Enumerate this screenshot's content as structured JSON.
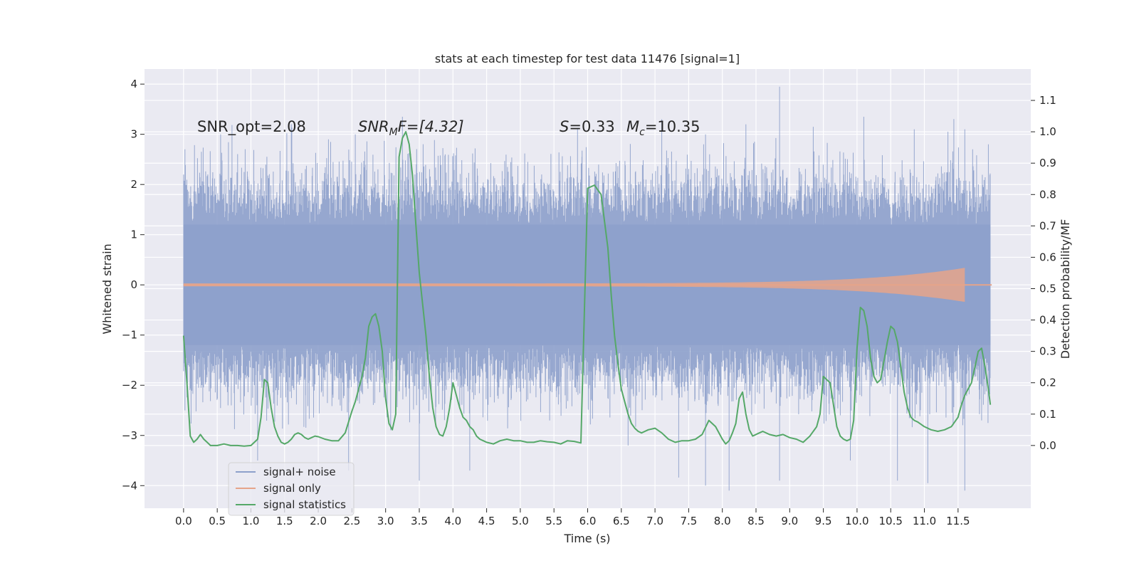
{
  "chart_data": {
    "type": "line",
    "title": "stats at each timestep for test data 11476 [signal=1]",
    "xlabel": "Time (s)",
    "ylabel_left": "Whitened strain",
    "ylabel_right": "Detection probability/MF",
    "xlim": [
      -0.58,
      12.58
    ],
    "ylim_left": [
      -4.45,
      4.3
    ],
    "ylim_right": [
      -0.2,
      1.2
    ],
    "xticks": [
      "0.0",
      "0.5",
      "1.0",
      "1.5",
      "2.0",
      "2.5",
      "3.0",
      "3.5",
      "4.0",
      "4.5",
      "5.0",
      "5.5",
      "6.0",
      "6.5",
      "7.0",
      "7.5",
      "8.0",
      "8.5",
      "9.0",
      "9.5",
      "10.0",
      "10.5",
      "11.0",
      "11.5"
    ],
    "yticks_left": [
      "4",
      "3",
      "2",
      "1",
      "0",
      "−1",
      "−2",
      "−3",
      "−4"
    ],
    "yticks_right": [
      "1.1",
      "1.0",
      "0.9",
      "0.8",
      "0.7",
      "0.6",
      "0.5",
      "0.4",
      "0.3",
      "0.2",
      "0.1",
      "0.0"
    ],
    "grid": true,
    "legend_position": "lower-left",
    "annotations": {
      "snr_opt": "SNR_opt=2.08",
      "snr_mf_main": "SNR",
      "snr_mf_sub": "M",
      "snr_mf_rest": "F=[4.32]",
      "s_main": "S",
      "s_rest": "=0.33",
      "mc_main": "M",
      "mc_sub": "c",
      "mc_rest": "=10.35"
    },
    "series": [
      {
        "name": "signal+ noise",
        "color": "#8da0cb",
        "description_values": "white noise, time 0.0-11.98 s, amplitude ~[-4.1, 3.95]",
        "t_range": [
          0.0,
          11.98
        ],
        "spike_times_high": [
          0.02,
          0.55,
          1.6,
          2.55,
          3.25,
          5.85,
          7.1,
          7.75,
          8.35,
          8.85,
          9.35,
          10.1,
          10.85,
          11.35,
          11.6,
          11.95
        ],
        "spike_values_high": [
          2.7,
          3.0,
          3.2,
          3.0,
          3.35,
          3.1,
          3.3,
          3.0,
          3.2,
          3.95,
          3.15,
          3.35,
          3.1,
          3.05,
          3.1,
          2.8
        ],
        "spike_times_low": [
          0.02,
          1.1,
          2.45,
          3.5,
          4.25,
          6.6,
          7.75,
          8.1,
          8.85,
          9.9,
          10.6,
          11.05,
          11.6,
          11.85
        ],
        "spike_values_low": [
          -2.5,
          -3.5,
          -3.7,
          -3.9,
          -3.7,
          -3.2,
          -4.0,
          -4.1,
          -3.9,
          -3.5,
          -3.9,
          -3.95,
          -4.1,
          -2.7
        ]
      },
      {
        "name": "signal only",
        "color": "#e6a48a",
        "description_values": "chirp growing toward 11.65 s peak amplitude ~0.35",
        "t_range": [
          0.0,
          11.65
        ],
        "peak_amplitude": 0.35
      },
      {
        "name": "signal statistics",
        "color": "#55a868",
        "axis": "right",
        "x": [
          0.0,
          0.05,
          0.1,
          0.15,
          0.2,
          0.25,
          0.3,
          0.35,
          0.4,
          0.5,
          0.6,
          0.7,
          0.8,
          0.9,
          1.0,
          1.1,
          1.15,
          1.2,
          1.25,
          1.3,
          1.35,
          1.4,
          1.45,
          1.5,
          1.55,
          1.6,
          1.65,
          1.7,
          1.75,
          1.8,
          1.85,
          1.9,
          1.95,
          2.0,
          2.1,
          2.2,
          2.3,
          2.4,
          2.5,
          2.55,
          2.6,
          2.65,
          2.7,
          2.75,
          2.8,
          2.85,
          2.9,
          2.95,
          3.0,
          3.05,
          3.1,
          3.15,
          3.2,
          3.25,
          3.3,
          3.35,
          3.4,
          3.45,
          3.5,
          3.55,
          3.6,
          3.65,
          3.7,
          3.75,
          3.8,
          3.85,
          3.9,
          3.95,
          4.0,
          4.05,
          4.1,
          4.15,
          4.2,
          4.25,
          4.3,
          4.35,
          4.4,
          4.45,
          4.5,
          4.6,
          4.7,
          4.8,
          4.9,
          5.0,
          5.1,
          5.2,
          5.3,
          5.4,
          5.5,
          5.6,
          5.7,
          5.8,
          5.9,
          6.0,
          6.1,
          6.2,
          6.3,
          6.35,
          6.4,
          6.45,
          6.5,
          6.55,
          6.6,
          6.65,
          6.7,
          6.75,
          6.8,
          6.85,
          6.9,
          7.0,
          7.1,
          7.2,
          7.3,
          7.4,
          7.5,
          7.6,
          7.7,
          7.8,
          7.9,
          8.0,
          8.05,
          8.1,
          8.15,
          8.2,
          8.25,
          8.3,
          8.35,
          8.4,
          8.45,
          8.5,
          8.55,
          8.6,
          8.7,
          8.8,
          8.9,
          9.0,
          9.1,
          9.2,
          9.3,
          9.4,
          9.45,
          9.5,
          9.55,
          9.6,
          9.65,
          9.7,
          9.75,
          9.8,
          9.85,
          9.9,
          9.95,
          10.0,
          10.05,
          10.1,
          10.15,
          10.2,
          10.25,
          10.3,
          10.35,
          10.4,
          10.45,
          10.5,
          10.55,
          10.6,
          10.65,
          10.7,
          10.75,
          10.8,
          10.85,
          10.9,
          11.0,
          11.1,
          11.2,
          11.3,
          11.4,
          11.5,
          11.55,
          11.6,
          11.65,
          11.7,
          11.75,
          11.8,
          11.85,
          11.9,
          11.95,
          11.98
        ],
        "y": [
          0.35,
          0.2,
          0.03,
          0.01,
          0.02,
          0.035,
          0.02,
          0.01,
          0.0,
          0.0,
          0.005,
          0.0,
          0.0,
          -0.002,
          0.0,
          0.02,
          0.09,
          0.21,
          0.2,
          0.12,
          0.06,
          0.03,
          0.01,
          0.005,
          0.01,
          0.02,
          0.035,
          0.04,
          0.035,
          0.025,
          0.02,
          0.025,
          0.03,
          0.028,
          0.02,
          0.015,
          0.015,
          0.04,
          0.11,
          0.14,
          0.18,
          0.22,
          0.28,
          0.38,
          0.41,
          0.42,
          0.38,
          0.3,
          0.15,
          0.07,
          0.05,
          0.1,
          0.92,
          0.98,
          1.0,
          0.96,
          0.86,
          0.7,
          0.55,
          0.45,
          0.35,
          0.22,
          0.12,
          0.06,
          0.035,
          0.03,
          0.06,
          0.12,
          0.2,
          0.16,
          0.12,
          0.09,
          0.08,
          0.06,
          0.05,
          0.03,
          0.02,
          0.015,
          0.01,
          0.005,
          0.015,
          0.02,
          0.015,
          0.015,
          0.01,
          0.01,
          0.015,
          0.012,
          0.01,
          0.005,
          0.015,
          0.013,
          0.008,
          0.82,
          0.83,
          0.8,
          0.63,
          0.48,
          0.35,
          0.26,
          0.18,
          0.14,
          0.1,
          0.07,
          0.055,
          0.045,
          0.04,
          0.045,
          0.05,
          0.055,
          0.04,
          0.02,
          0.01,
          0.015,
          0.015,
          0.02,
          0.035,
          0.08,
          0.06,
          0.02,
          0.005,
          0.015,
          0.04,
          0.07,
          0.15,
          0.17,
          0.1,
          0.05,
          0.03,
          0.035,
          0.04,
          0.045,
          0.035,
          0.03,
          0.035,
          0.025,
          0.02,
          0.01,
          0.03,
          0.06,
          0.1,
          0.22,
          0.21,
          0.2,
          0.13,
          0.06,
          0.03,
          0.02,
          0.015,
          0.02,
          0.08,
          0.31,
          0.44,
          0.43,
          0.38,
          0.28,
          0.22,
          0.2,
          0.21,
          0.27,
          0.33,
          0.38,
          0.37,
          0.33,
          0.25,
          0.17,
          0.12,
          0.09,
          0.08,
          0.075,
          0.06,
          0.05,
          0.045,
          0.05,
          0.06,
          0.09,
          0.13,
          0.16,
          0.18,
          0.2,
          0.25,
          0.3,
          0.31,
          0.25,
          0.18,
          0.13
        ]
      }
    ]
  },
  "legend": {
    "items": [
      {
        "label": "signal+ noise",
        "color": "#8da0cb"
      },
      {
        "label": "signal only",
        "color": "#e6a48a"
      },
      {
        "label": "signal statistics",
        "color": "#55a868"
      }
    ]
  }
}
